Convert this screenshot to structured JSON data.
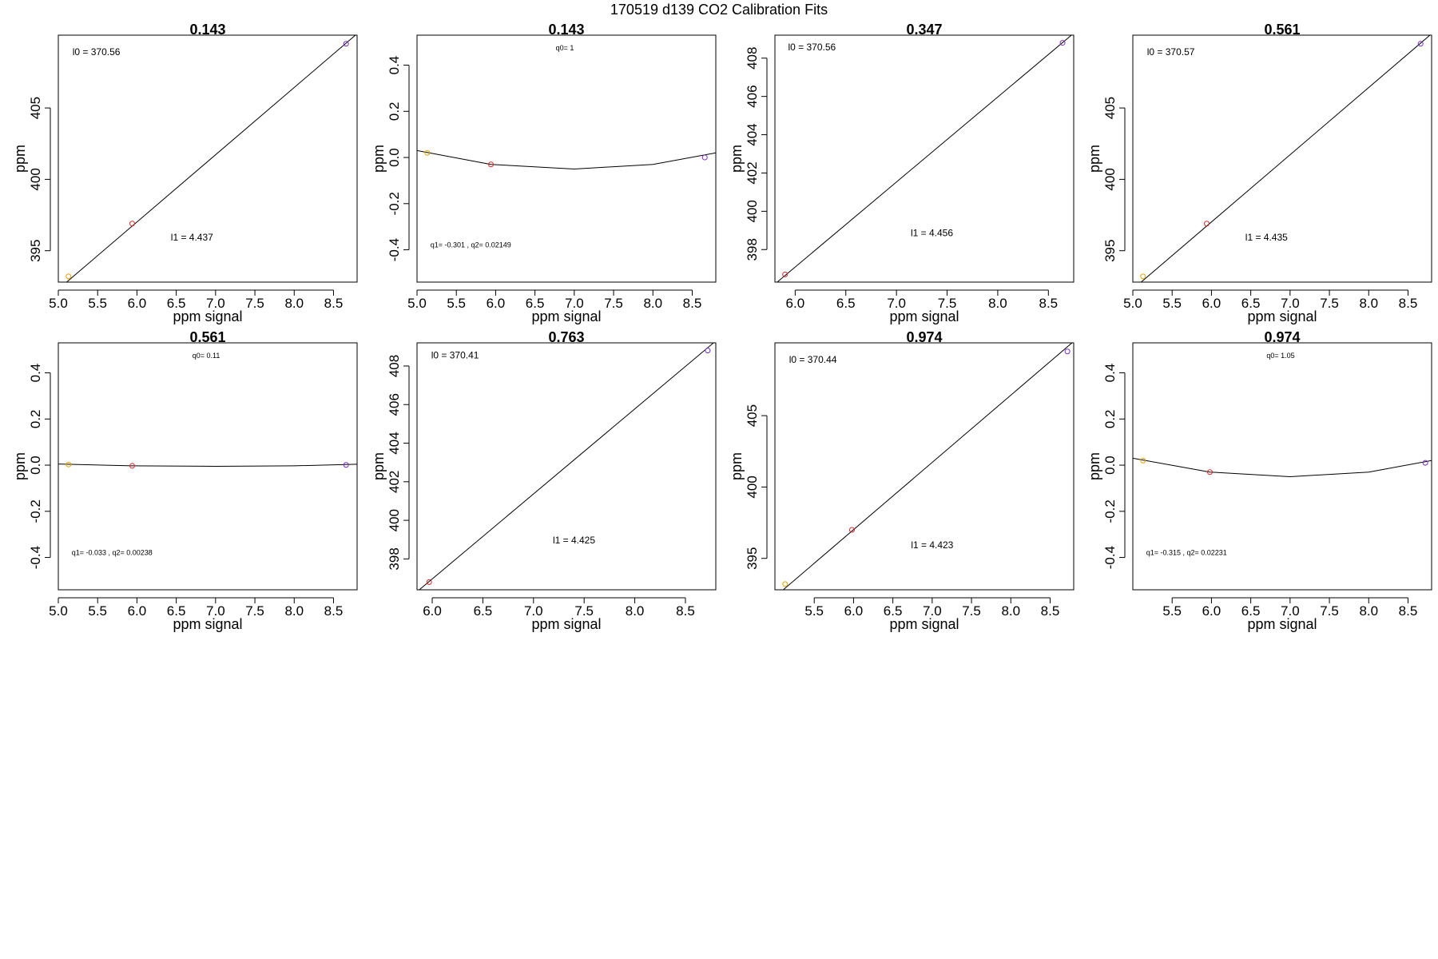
{
  "title": "170519   d139   CO2 Calibration Fits",
  "chart_data": [
    {
      "type": "scatter",
      "title": "0.143",
      "xlabel": "ppm signal",
      "ylabel": "ppm",
      "xlim": [
        5.0,
        8.8
      ],
      "ylim": [
        392.8,
        410.1
      ],
      "xticks": [
        5.0,
        5.5,
        6.0,
        6.5,
        7.0,
        7.5,
        8.0,
        8.5
      ],
      "yticks": [
        395,
        400,
        405
      ],
      "fit": {
        "type": "line",
        "x": [
          5.0,
          8.8
        ],
        "y": [
          392.3,
          410.2
        ]
      },
      "points": [
        {
          "x": 5.13,
          "y": 393.2,
          "color": "#e69f00"
        },
        {
          "x": 5.94,
          "y": 396.9,
          "color": "#d62728"
        },
        {
          "x": 8.66,
          "y": 409.5,
          "color": "#7b2fbf"
        }
      ],
      "annotations": [
        {
          "text": "l0 =  370.56",
          "x": 5.18,
          "y": 408.7,
          "anchor": "start",
          "size": "big"
        },
        {
          "text": "l1 =  4.437",
          "x": 6.7,
          "y": 395.7,
          "anchor": "middle",
          "size": "big"
        }
      ]
    },
    {
      "type": "scatter",
      "title": "0.143",
      "xlabel": "ppm signal",
      "ylabel": "ppm",
      "xlim": [
        5.0,
        8.8
      ],
      "ylim": [
        -0.54,
        0.53
      ],
      "xticks": [
        5.0,
        5.5,
        6.0,
        6.5,
        7.0,
        7.5,
        8.0,
        8.5
      ],
      "yticks": [
        -0.4,
        -0.2,
        0.0,
        0.2,
        0.4
      ],
      "fit": {
        "type": "curve",
        "x": [
          5.0,
          5.94,
          7.0,
          8.0,
          8.8
        ],
        "y": [
          0.03,
          -0.03,
          -0.05,
          -0.03,
          0.02
        ]
      },
      "points": [
        {
          "x": 5.13,
          "y": 0.02,
          "color": "#e69f00"
        },
        {
          "x": 5.94,
          "y": -0.03,
          "color": "#d62728"
        },
        {
          "x": 8.66,
          "y": 0.0,
          "color": "#7b2fbf"
        }
      ],
      "annotations": [
        {
          "text": "q0= 1",
          "x": 6.88,
          "y": 0.465,
          "anchor": "middle",
          "size": "small"
        },
        {
          "text": "q1= -0.301 , q2= 0.02149",
          "x": 5.17,
          "y": -0.39,
          "anchor": "start",
          "size": "small"
        }
      ]
    },
    {
      "type": "scatter",
      "title": "0.347",
      "xlabel": "ppm signal",
      "ylabel": "ppm",
      "xlim": [
        5.8,
        8.75
      ],
      "ylim": [
        396.3,
        409.2
      ],
      "xticks": [
        6.0,
        6.5,
        7.0,
        7.5,
        8.0,
        8.5
      ],
      "yticks": [
        398,
        400,
        402,
        404,
        406,
        408
      ],
      "fit": {
        "type": "line",
        "x": [
          5.8,
          8.75
        ],
        "y": [
          396.2,
          409.3
        ]
      },
      "points": [
        {
          "x": 5.9,
          "y": 396.7,
          "color": "#d62728"
        },
        {
          "x": 8.64,
          "y": 408.8,
          "color": "#7b2fbf"
        }
      ],
      "annotations": [
        {
          "text": "l0 =  370.56",
          "x": 5.93,
          "y": 408.4,
          "anchor": "start",
          "size": "big"
        },
        {
          "text": "l1 =  4.456",
          "x": 7.35,
          "y": 398.7,
          "anchor": "middle",
          "size": "big"
        }
      ]
    },
    {
      "type": "scatter",
      "title": "0.561",
      "xlabel": "ppm signal",
      "ylabel": "ppm",
      "xlim": [
        5.0,
        8.8
      ],
      "ylim": [
        392.8,
        410.1
      ],
      "xticks": [
        5.0,
        5.5,
        6.0,
        6.5,
        7.0,
        7.5,
        8.0,
        8.5
      ],
      "yticks": [
        395,
        400,
        405
      ],
      "fit": {
        "type": "line",
        "x": [
          5.0,
          8.8
        ],
        "y": [
          392.3,
          410.2
        ]
      },
      "points": [
        {
          "x": 5.13,
          "y": 393.2,
          "color": "#e69f00"
        },
        {
          "x": 5.94,
          "y": 396.9,
          "color": "#d62728"
        },
        {
          "x": 8.66,
          "y": 409.5,
          "color": "#7b2fbf"
        }
      ],
      "annotations": [
        {
          "text": "l0 =  370.57",
          "x": 5.18,
          "y": 408.7,
          "anchor": "start",
          "size": "big"
        },
        {
          "text": "l1 =  4.435",
          "x": 6.7,
          "y": 395.7,
          "anchor": "middle",
          "size": "big"
        }
      ]
    },
    {
      "type": "scatter",
      "title": "0.561",
      "xlabel": "ppm signal",
      "ylabel": "ppm",
      "xlim": [
        5.0,
        8.8
      ],
      "ylim": [
        -0.54,
        0.53
      ],
      "xticks": [
        5.0,
        5.5,
        6.0,
        6.5,
        7.0,
        7.5,
        8.0,
        8.5
      ],
      "yticks": [
        -0.4,
        -0.2,
        0.0,
        0.2,
        0.4
      ],
      "fit": {
        "type": "curve",
        "x": [
          5.0,
          5.94,
          7.0,
          8.0,
          8.8
        ],
        "y": [
          0.005,
          -0.003,
          -0.005,
          -0.003,
          0.004
        ]
      },
      "points": [
        {
          "x": 5.13,
          "y": 0.003,
          "color": "#e69f00"
        },
        {
          "x": 5.94,
          "y": -0.003,
          "color": "#d62728"
        },
        {
          "x": 8.66,
          "y": 0.001,
          "color": "#7b2fbf"
        }
      ],
      "annotations": [
        {
          "text": "q0= 0.11",
          "x": 6.88,
          "y": 0.465,
          "anchor": "middle",
          "size": "small"
        },
        {
          "text": "q1= -0.033 , q2= 0.00238",
          "x": 5.17,
          "y": -0.39,
          "anchor": "start",
          "size": "small"
        }
      ]
    },
    {
      "type": "scatter",
      "title": "0.763",
      "xlabel": "ppm signal",
      "ylabel": "ppm",
      "xlim": [
        5.85,
        8.8
      ],
      "ylim": [
        396.4,
        409.2
      ],
      "xticks": [
        6.0,
        6.5,
        7.0,
        7.5,
        8.0,
        8.5
      ],
      "yticks": [
        398,
        400,
        402,
        404,
        406,
        408
      ],
      "fit": {
        "type": "line",
        "x": [
          5.85,
          8.8
        ],
        "y": [
          396.3,
          409.3
        ]
      },
      "points": [
        {
          "x": 5.97,
          "y": 396.8,
          "color": "#d62728"
        },
        {
          "x": 8.72,
          "y": 408.8,
          "color": "#7b2fbf"
        }
      ],
      "annotations": [
        {
          "text": "l0 =  370.41",
          "x": 5.99,
          "y": 408.4,
          "anchor": "start",
          "size": "big"
        },
        {
          "text": "l1 =  4.425",
          "x": 7.4,
          "y": 398.8,
          "anchor": "middle",
          "size": "big"
        }
      ]
    },
    {
      "type": "scatter",
      "title": "0.974",
      "xlabel": "ppm signal",
      "ylabel": "ppm",
      "xlim": [
        5.0,
        8.8
      ],
      "ylim": [
        392.8,
        410.1
      ],
      "xticks": [
        5.5,
        6.0,
        6.5,
        7.0,
        7.5,
        8.0,
        8.5
      ],
      "yticks": [
        395,
        400,
        405
      ],
      "fit": {
        "type": "line",
        "x": [
          5.0,
          8.8
        ],
        "y": [
          392.3,
          410.2
        ]
      },
      "points": [
        {
          "x": 5.13,
          "y": 393.2,
          "color": "#e69f00"
        },
        {
          "x": 5.98,
          "y": 397.0,
          "color": "#d62728"
        },
        {
          "x": 8.72,
          "y": 409.5,
          "color": "#7b2fbf"
        }
      ],
      "annotations": [
        {
          "text": "l0 =  370.44",
          "x": 5.18,
          "y": 408.7,
          "anchor": "start",
          "size": "big"
        },
        {
          "text": "l1 =  4.423",
          "x": 7.0,
          "y": 395.7,
          "anchor": "middle",
          "size": "big"
        }
      ]
    },
    {
      "type": "scatter",
      "title": "0.974",
      "xlabel": "ppm signal",
      "ylabel": "ppm",
      "xlim": [
        5.0,
        8.8
      ],
      "ylim": [
        -0.54,
        0.53
      ],
      "xticks": [
        5.5,
        6.0,
        6.5,
        7.0,
        7.5,
        8.0,
        8.5
      ],
      "yticks": [
        -0.4,
        -0.2,
        0.0,
        0.2,
        0.4
      ],
      "fit": {
        "type": "curve",
        "x": [
          5.0,
          5.98,
          7.0,
          8.0,
          8.8
        ],
        "y": [
          0.03,
          -0.03,
          -0.05,
          -0.03,
          0.02
        ]
      },
      "points": [
        {
          "x": 5.13,
          "y": 0.02,
          "color": "#e69f00"
        },
        {
          "x": 5.98,
          "y": -0.03,
          "color": "#d62728"
        },
        {
          "x": 8.72,
          "y": 0.01,
          "color": "#7b2fbf"
        }
      ],
      "annotations": [
        {
          "text": "q0= 1.05",
          "x": 6.88,
          "y": 0.465,
          "anchor": "middle",
          "size": "small"
        },
        {
          "text": "q1= -0.315 , q2= 0.02231",
          "x": 5.17,
          "y": -0.39,
          "anchor": "start",
          "size": "small"
        }
      ]
    }
  ]
}
